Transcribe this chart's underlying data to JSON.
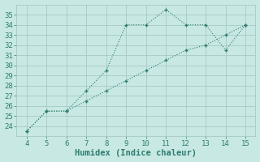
{
  "line1_x": [
    4,
    5,
    6,
    7,
    8,
    9,
    10,
    11,
    12,
    13,
    14,
    15
  ],
  "line1_y": [
    23.5,
    25.5,
    25.5,
    27.5,
    29.5,
    34.0,
    34.0,
    35.5,
    34.0,
    34.0,
    31.5,
    34.0
  ],
  "line2_x": [
    4,
    5,
    6,
    7,
    8,
    9,
    10,
    11,
    12,
    13,
    14,
    15
  ],
  "line2_y": [
    23.5,
    25.5,
    25.5,
    26.5,
    27.5,
    28.5,
    29.5,
    30.5,
    31.5,
    32.0,
    33.0,
    34.0
  ],
  "line_color": "#2e7d6e",
  "bg_color": "#c8e8e4",
  "grid_color": "#a0c4c0",
  "xlabel": "Humidex (Indice chaleur)",
  "xlim": [
    3.5,
    15.5
  ],
  "ylim": [
    23.0,
    36.0
  ],
  "xticks": [
    4,
    5,
    6,
    7,
    8,
    9,
    10,
    11,
    12,
    13,
    14,
    15
  ],
  "yticks": [
    24,
    25,
    26,
    27,
    28,
    29,
    30,
    31,
    32,
    33,
    34,
    35
  ],
  "font_size": 6.5,
  "xlabel_fontsize": 7.5
}
